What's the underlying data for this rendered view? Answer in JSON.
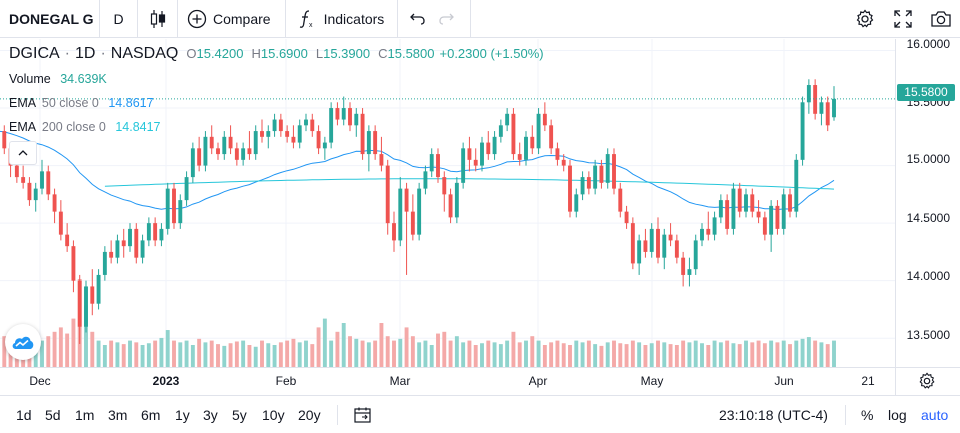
{
  "toolbar": {
    "symbol": "DONEGAL G",
    "interval": "D",
    "compare_label": "Compare",
    "indicators_label": "Indicators"
  },
  "legend": {
    "symbol": "DGICA",
    "interval": "1D",
    "exchange": "NASDAQ",
    "separator": "·",
    "o_key": "O",
    "o_val": "15.4200",
    "h_key": "H",
    "h_val": "15.6900",
    "l_key": "L",
    "l_val": "15.3900",
    "c_key": "C",
    "c_val": "15.5800",
    "change": "+0.2300 (+1.50%)"
  },
  "indicators": [
    {
      "name": "Volume",
      "params": "",
      "value": "34.639K",
      "color": "#26a69a"
    },
    {
      "name": "EMA",
      "params": "50 close 0",
      "value": "14.8617",
      "color": "#2196f3"
    },
    {
      "name": "EMA",
      "params": "200 close 0",
      "value": "14.8417",
      "color": "#26c6da"
    }
  ],
  "price_scale": {
    "labels": [
      "16.0000",
      "15.5000",
      "15.0000",
      "14.5000",
      "14.0000",
      "13.5000"
    ],
    "last_price": "15.5800"
  },
  "time_axis": [
    {
      "label": "Dec",
      "bold": false
    },
    {
      "label": "2023",
      "bold": true
    },
    {
      "label": "Feb",
      "bold": false
    },
    {
      "label": "Mar",
      "bold": false
    },
    {
      "label": "Apr",
      "bold": false
    },
    {
      "label": "May",
      "bold": false
    },
    {
      "label": "Jun",
      "bold": false
    },
    {
      "label": "21",
      "bold": false
    }
  ],
  "bottom": {
    "ranges": [
      "1d",
      "5d",
      "1m",
      "3m",
      "6m",
      "1y",
      "3y",
      "5y",
      "10y",
      "20y"
    ],
    "clock": "23:10:18 (UTC-4)",
    "percent": "%",
    "log": "log",
    "auto": "auto"
  },
  "colors": {
    "up": "#26a69a",
    "down": "#ef5350",
    "vol_up": "#8fd3cd",
    "vol_down": "#f4a9a8",
    "ema50": "#2196f3",
    "ema200": "#26c6da",
    "accent": "#2962ff"
  },
  "chart_data": {
    "type": "candlestick",
    "symbol": "DGICA",
    "interval": "1D",
    "ylim": [
      13.25,
      16.1
    ],
    "last_price": 15.58,
    "x_labels": [
      "Dec",
      "2023",
      "Feb",
      "Mar",
      "Apr",
      "May",
      "Jun",
      "21"
    ],
    "candles": [
      [
        15.2,
        15.4,
        15.1,
        15.3
      ],
      [
        15.3,
        15.35,
        15.1,
        15.15
      ],
      [
        15.15,
        15.2,
        14.9,
        15.0
      ],
      [
        15.0,
        15.1,
        14.85,
        14.9
      ],
      [
        14.9,
        15.0,
        14.8,
        14.85
      ],
      [
        14.85,
        14.9,
        14.65,
        14.7
      ],
      [
        14.7,
        14.85,
        14.6,
        14.8
      ],
      [
        14.8,
        15.05,
        14.75,
        14.95
      ],
      [
        14.95,
        15.0,
        14.7,
        14.75
      ],
      [
        14.75,
        14.8,
        14.5,
        14.6
      ],
      [
        14.6,
        14.7,
        14.35,
        14.4
      ],
      [
        14.4,
        14.5,
        14.25,
        14.3
      ],
      [
        14.3,
        14.35,
        13.9,
        14.0
      ],
      [
        14.0,
        14.05,
        13.45,
        13.6
      ],
      [
        13.6,
        14.0,
        13.55,
        13.95
      ],
      [
        13.95,
        14.1,
        13.7,
        13.8
      ],
      [
        13.8,
        14.1,
        13.75,
        14.05
      ],
      [
        14.05,
        14.3,
        14.0,
        14.25
      ],
      [
        14.25,
        14.35,
        14.15,
        14.2
      ],
      [
        14.2,
        14.4,
        14.15,
        14.35
      ],
      [
        14.35,
        14.45,
        14.2,
        14.3
      ],
      [
        14.3,
        14.5,
        14.25,
        14.45
      ],
      [
        14.45,
        14.5,
        14.15,
        14.2
      ],
      [
        14.2,
        14.4,
        14.15,
        14.35
      ],
      [
        14.35,
        14.55,
        14.3,
        14.5
      ],
      [
        14.5,
        14.55,
        14.3,
        14.35
      ],
      [
        14.35,
        14.5,
        14.3,
        14.45
      ],
      [
        14.45,
        14.85,
        14.4,
        14.8
      ],
      [
        14.8,
        14.85,
        14.45,
        14.5
      ],
      [
        14.5,
        14.75,
        14.45,
        14.7
      ],
      [
        14.7,
        14.95,
        14.65,
        14.9
      ],
      [
        14.9,
        15.2,
        14.85,
        15.15
      ],
      [
        15.15,
        15.25,
        14.95,
        15.0
      ],
      [
        15.0,
        15.3,
        14.95,
        15.25
      ],
      [
        15.25,
        15.35,
        15.1,
        15.15
      ],
      [
        15.15,
        15.2,
        15.05,
        15.1
      ],
      [
        15.1,
        15.3,
        15.05,
        15.25
      ],
      [
        15.25,
        15.35,
        15.1,
        15.15
      ],
      [
        15.15,
        15.2,
        15.0,
        15.05
      ],
      [
        15.05,
        15.2,
        15.0,
        15.15
      ],
      [
        15.15,
        15.3,
        15.05,
        15.1
      ],
      [
        15.1,
        15.35,
        15.05,
        15.3
      ],
      [
        15.3,
        15.4,
        15.2,
        15.25
      ],
      [
        15.25,
        15.35,
        15.15,
        15.3
      ],
      [
        15.3,
        15.45,
        15.25,
        15.4
      ],
      [
        15.4,
        15.45,
        15.25,
        15.3
      ],
      [
        15.3,
        15.35,
        15.2,
        15.25
      ],
      [
        15.25,
        15.35,
        15.15,
        15.2
      ],
      [
        15.2,
        15.4,
        15.15,
        15.35
      ],
      [
        15.35,
        15.45,
        15.3,
        15.4
      ],
      [
        15.4,
        15.45,
        15.25,
        15.3
      ],
      [
        15.3,
        15.35,
        15.1,
        15.15
      ],
      [
        15.15,
        15.25,
        15.05,
        15.2
      ],
      [
        15.2,
        15.55,
        15.15,
        15.5
      ],
      [
        15.5,
        15.55,
        15.35,
        15.4
      ],
      [
        15.4,
        15.6,
        15.35,
        15.5
      ],
      [
        15.5,
        15.55,
        15.3,
        15.35
      ],
      [
        15.35,
        15.5,
        15.25,
        15.45
      ],
      [
        15.45,
        15.5,
        15.05,
        15.1
      ],
      [
        15.1,
        15.35,
        14.95,
        15.3
      ],
      [
        15.3,
        15.35,
        15.05,
        15.1
      ],
      [
        15.1,
        15.25,
        14.95,
        15.0
      ],
      [
        15.0,
        15.05,
        14.4,
        14.5
      ],
      [
        14.5,
        14.6,
        14.25,
        14.35
      ],
      [
        14.35,
        14.9,
        14.3,
        14.8
      ],
      [
        14.8,
        14.85,
        14.05,
        14.6
      ],
      [
        14.6,
        14.75,
        14.35,
        14.4
      ],
      [
        14.4,
        14.85,
        14.35,
        14.8
      ],
      [
        14.8,
        15.0,
        14.75,
        14.95
      ],
      [
        14.95,
        15.15,
        14.9,
        15.1
      ],
      [
        15.1,
        15.15,
        14.85,
        14.9
      ],
      [
        14.9,
        14.95,
        14.6,
        14.75
      ],
      [
        14.75,
        14.8,
        14.5,
        14.55
      ],
      [
        14.55,
        14.9,
        14.5,
        14.85
      ],
      [
        14.85,
        15.2,
        14.8,
        15.15
      ],
      [
        15.15,
        15.25,
        14.95,
        15.05
      ],
      [
        15.05,
        15.15,
        14.95,
        15.0
      ],
      [
        15.0,
        15.25,
        14.95,
        15.2
      ],
      [
        15.2,
        15.3,
        15.05,
        15.1
      ],
      [
        15.1,
        15.3,
        15.05,
        15.25
      ],
      [
        15.25,
        15.4,
        15.2,
        15.35
      ],
      [
        15.35,
        15.5,
        15.3,
        15.45
      ],
      [
        15.45,
        15.5,
        15.05,
        15.1
      ],
      [
        15.1,
        15.2,
        15.0,
        15.05
      ],
      [
        15.05,
        15.3,
        15.0,
        15.25
      ],
      [
        15.25,
        15.35,
        15.1,
        15.15
      ],
      [
        15.15,
        15.5,
        15.1,
        15.45
      ],
      [
        15.45,
        15.55,
        15.3,
        15.35
      ],
      [
        15.35,
        15.4,
        15.1,
        15.15
      ],
      [
        15.15,
        15.2,
        15.0,
        15.05
      ],
      [
        15.05,
        15.1,
        14.95,
        15.0
      ],
      [
        15.0,
        15.05,
        14.55,
        14.6
      ],
      [
        14.6,
        14.8,
        14.55,
        14.75
      ],
      [
        14.75,
        14.95,
        14.7,
        14.9
      ],
      [
        14.9,
        14.95,
        14.75,
        14.8
      ],
      [
        14.8,
        15.05,
        14.75,
        15.0
      ],
      [
        15.0,
        15.05,
        14.8,
        14.85
      ],
      [
        14.85,
        15.15,
        14.8,
        15.1
      ],
      [
        15.1,
        15.15,
        14.75,
        14.8
      ],
      [
        14.8,
        14.85,
        14.55,
        14.6
      ],
      [
        14.6,
        14.65,
        14.45,
        14.5
      ],
      [
        14.5,
        14.55,
        14.1,
        14.15
      ],
      [
        14.15,
        14.4,
        14.05,
        14.35
      ],
      [
        14.35,
        14.45,
        14.2,
        14.25
      ],
      [
        14.25,
        14.5,
        14.2,
        14.45
      ],
      [
        14.45,
        14.55,
        14.15,
        14.2
      ],
      [
        14.2,
        14.45,
        14.1,
        14.4
      ],
      [
        14.4,
        14.5,
        14.3,
        14.35
      ],
      [
        14.35,
        14.4,
        14.15,
        14.2
      ],
      [
        14.2,
        14.25,
        13.95,
        14.05
      ],
      [
        14.05,
        14.2,
        13.95,
        14.1
      ],
      [
        14.1,
        14.4,
        14.05,
        14.35
      ],
      [
        14.35,
        14.5,
        14.3,
        14.45
      ],
      [
        14.45,
        14.6,
        14.35,
        14.4
      ],
      [
        14.4,
        14.6,
        14.35,
        14.55
      ],
      [
        14.55,
        14.75,
        14.5,
        14.7
      ],
      [
        14.7,
        14.75,
        14.4,
        14.45
      ],
      [
        14.45,
        14.85,
        14.4,
        14.8
      ],
      [
        14.8,
        14.85,
        14.55,
        14.6
      ],
      [
        14.6,
        14.8,
        14.55,
        14.75
      ],
      [
        14.75,
        14.8,
        14.55,
        14.6
      ],
      [
        14.6,
        14.7,
        14.5,
        14.55
      ],
      [
        14.55,
        14.6,
        14.35,
        14.4
      ],
      [
        14.4,
        14.7,
        14.25,
        14.65
      ],
      [
        14.65,
        14.7,
        14.4,
        14.45
      ],
      [
        14.45,
        14.8,
        14.4,
        14.75
      ],
      [
        14.75,
        14.8,
        14.55,
        14.6
      ],
      [
        14.6,
        15.1,
        14.55,
        15.05
      ],
      [
        15.05,
        15.6,
        15.0,
        15.55
      ],
      [
        15.55,
        15.75,
        15.45,
        15.7
      ],
      [
        15.7,
        15.75,
        15.4,
        15.45
      ],
      [
        15.45,
        15.6,
        15.35,
        15.55
      ],
      [
        15.55,
        15.6,
        15.3,
        15.35
      ],
      [
        15.42,
        15.69,
        15.39,
        15.58
      ]
    ],
    "volume_relative": [
      0.3,
      0.35,
      0.25,
      0.4,
      0.3,
      0.28,
      0.33,
      0.3,
      0.35,
      0.4,
      0.45,
      0.38,
      0.55,
      1.0,
      0.7,
      0.4,
      0.3,
      0.25,
      0.3,
      0.28,
      0.26,
      0.3,
      0.28,
      0.25,
      0.27,
      0.3,
      0.33,
      0.42,
      0.3,
      0.28,
      0.3,
      0.25,
      0.32,
      0.28,
      0.3,
      0.26,
      0.24,
      0.27,
      0.29,
      0.3,
      0.25,
      0.23,
      0.3,
      0.27,
      0.25,
      0.28,
      0.3,
      0.32,
      0.28,
      0.3,
      0.26,
      0.45,
      0.55,
      0.3,
      0.4,
      0.5,
      0.35,
      0.32,
      0.3,
      0.28,
      0.3,
      0.5,
      0.35,
      0.3,
      0.32,
      0.45,
      0.35,
      0.28,
      0.3,
      0.25,
      0.38,
      0.4,
      0.3,
      0.35,
      0.28,
      0.3,
      0.25,
      0.27,
      0.3,
      0.28,
      0.26,
      0.3,
      0.4,
      0.28,
      0.3,
      0.35,
      0.3,
      0.25,
      0.28,
      0.3,
      0.27,
      0.25,
      0.3,
      0.28,
      0.3,
      0.26,
      0.24,
      0.28,
      0.3,
      0.27,
      0.26,
      0.3,
      0.28,
      0.25,
      0.27,
      0.3,
      0.28,
      0.26,
      0.25,
      0.3,
      0.28,
      0.3,
      0.27,
      0.25,
      0.3,
      0.28,
      0.3,
      0.27,
      0.26,
      0.3,
      0.28,
      0.3,
      0.27,
      0.3,
      0.28,
      0.3,
      0.26,
      0.3,
      0.32,
      0.34,
      0.3,
      0.28,
      0.26,
      0.3
    ],
    "ema50_end": 14.8617,
    "ema200_end": 14.8417
  }
}
